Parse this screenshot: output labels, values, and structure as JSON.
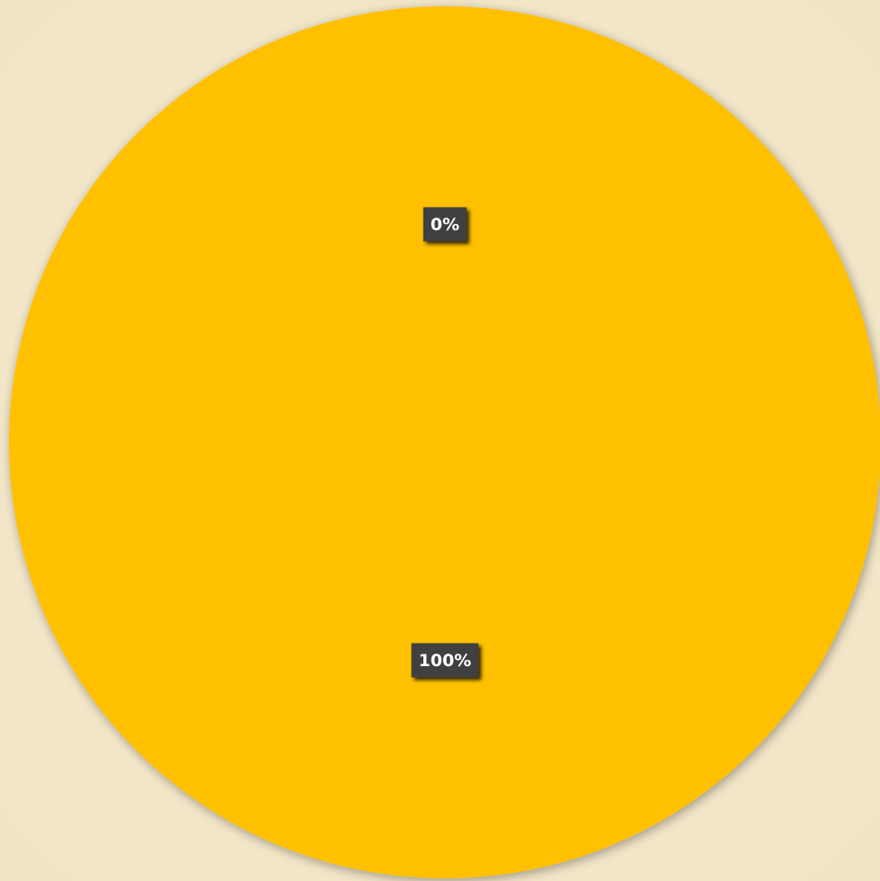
{
  "chart_data": {
    "type": "pie",
    "categories": [
      null,
      null
    ],
    "values": [
      0,
      100
    ],
    "value_labels": [
      "0%",
      "100%"
    ],
    "colors": [
      "#5B9BD5",
      "#FFC000"
    ]
  }
}
